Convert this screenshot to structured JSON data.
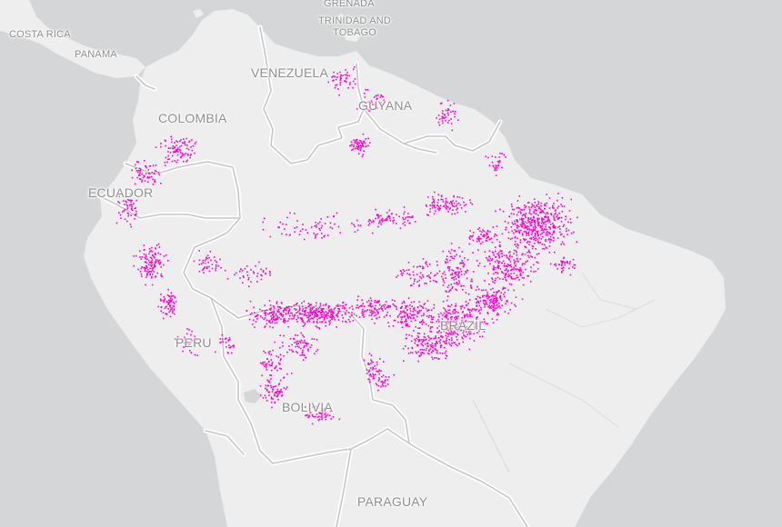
{
  "map": {
    "colors": {
      "water": "#d4d6d7",
      "land": "#eeeeee",
      "border": "#c6c6c6",
      "border_halo": "#ffffff",
      "points": "#ff00cc"
    },
    "labels": {
      "grenada": "GRENADA",
      "trinidad_line1": "TRINIDAD AND",
      "trinidad_line2": "TOBAGO",
      "costa_rica": "COSTA RICA",
      "panama": "PANAMA",
      "venezuela": "VENEZUELA",
      "guyana": "GUYANA",
      "colombia": "COLOMBIA",
      "ecuador": "ECUADOR",
      "peru": "PERU",
      "brazil": "BRAZIL",
      "bolivia": "BOLIVIA",
      "paraguay": "PARAGUAY"
    }
  }
}
